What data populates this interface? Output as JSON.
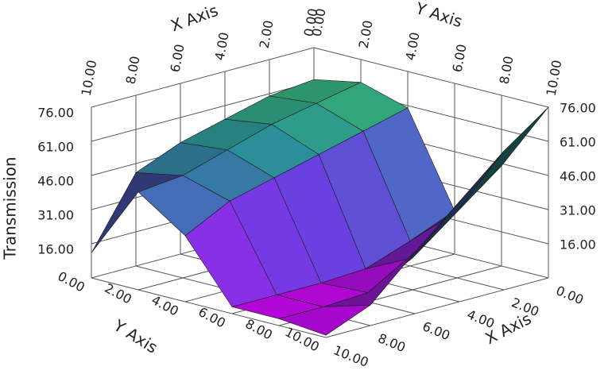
{
  "chart_data": {
    "type": "surface3d",
    "x_label": "X Axis",
    "y_label": "Y Axis",
    "z_label": "Transmission",
    "x": [
      0,
      2,
      4,
      6,
      8,
      10
    ],
    "y": [
      0,
      2,
      4,
      6,
      8,
      10
    ],
    "z": [
      [
        62,
        60,
        55,
        50,
        42,
        12
      ],
      [
        66,
        62,
        58,
        52,
        46,
        44
      ],
      [
        60,
        55,
        50,
        45,
        40,
        30
      ],
      [
        20,
        12,
        5,
        4,
        4,
        4
      ],
      [
        45,
        30,
        15,
        5,
        4,
        4
      ],
      [
        76,
        62,
        45,
        28,
        10,
        2
      ]
    ],
    "xlim": [
      0,
      10
    ],
    "ylim": [
      0,
      10
    ],
    "zlim": [
      1,
      76
    ],
    "xticks": [
      {
        "value": 0,
        "label": "0.00"
      },
      {
        "value": 2,
        "label": "2.00"
      },
      {
        "value": 4,
        "label": "4.00"
      },
      {
        "value": 6,
        "label": "6.00"
      },
      {
        "value": 8,
        "label": "8.00"
      },
      {
        "value": 10,
        "label": "10.00"
      }
    ],
    "yticks": [
      {
        "value": 0,
        "label": "0.00"
      },
      {
        "value": 2,
        "label": "2.00"
      },
      {
        "value": 4,
        "label": "4.00"
      },
      {
        "value": 6,
        "label": "6.00"
      },
      {
        "value": 8,
        "label": "8.00"
      },
      {
        "value": 10,
        "label": "10.00"
      }
    ],
    "zticks": [
      {
        "value": 16,
        "label": "16.00"
      },
      {
        "value": 31,
        "label": "31.00"
      },
      {
        "value": 46,
        "label": "46.00"
      },
      {
        "value": 61,
        "label": "61.00"
      },
      {
        "value": 76,
        "label": "76.00"
      }
    ],
    "colormap": [
      "#e000ff",
      "#6a40e0",
      "#2f9aa8",
      "#44e058"
    ],
    "grid": true
  }
}
